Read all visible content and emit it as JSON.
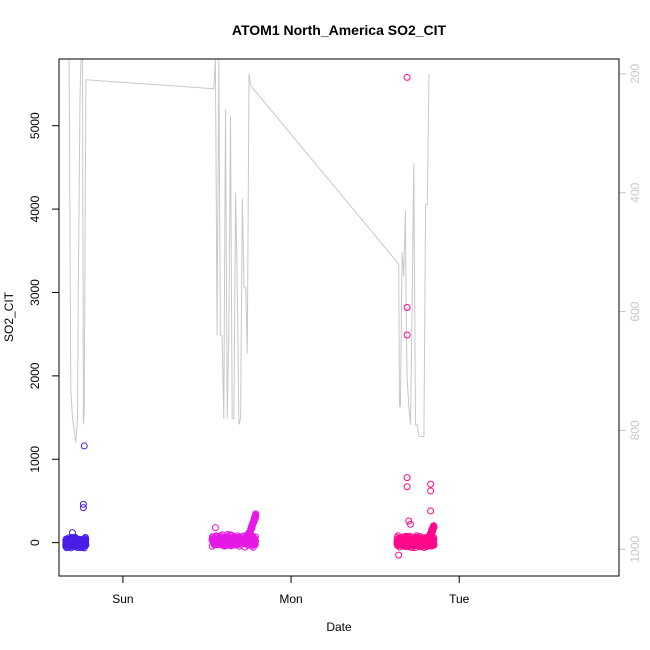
{
  "chart_data": {
    "type": "scatter",
    "title": "ATOM1 North_America SO2_CIT",
    "xlabel": "Date",
    "ylabel": "SO2_CIT",
    "x_ticks": [
      "Sun",
      "Mon",
      "Tue"
    ],
    "xlim_days": [
      -0.38,
      2.95
    ],
    "ylim": [
      -400,
      5800
    ],
    "y_ticks": [
      0,
      1000,
      2000,
      3000,
      4000,
      5000
    ],
    "y2_ticks": [
      200,
      400,
      600,
      800,
      1000
    ],
    "y2lim": [
      1045,
      175
    ],
    "y2_reversed": true,
    "grid": false,
    "legend": "none",
    "colors": {
      "axis": "#000000",
      "secondary_axis": "#c8c8c8",
      "pressure_line": "#c8c8c8",
      "series_start": "#4a1ee6",
      "series_mid": "#e619e6",
      "series_end": "#ff0a8c"
    },
    "series": [
      {
        "type": "scatter-clusters",
        "clusters": [
          {
            "start": -0.34,
            "end": -0.22,
            "base": 0,
            "spread": 55,
            "n": 260,
            "color": "#4a1ee6"
          },
          {
            "start": 0.53,
            "end": 0.79,
            "base": 20,
            "spread": 60,
            "n": 340,
            "color": "#e619e6"
          },
          {
            "start": 1.63,
            "end": 1.85,
            "base": 10,
            "spread": 60,
            "n": 320,
            "color": "#ff0a8c"
          }
        ],
        "ramps": [
          {
            "start": 0.74,
            "end": 0.79,
            "base": 40,
            "peak": 330,
            "color": "#e619e6"
          },
          {
            "start": 1.82,
            "end": 1.85,
            "base": 50,
            "peak": 200,
            "color": "#ff0a8c"
          }
        ],
        "outliers": [
          {
            "x": -0.23,
            "y": 1160,
            "color": "#4a1ee6"
          },
          {
            "x": -0.235,
            "y": 460,
            "color": "#4a1ee6"
          },
          {
            "x": -0.235,
            "y": 420,
            "color": "#4a1ee6"
          },
          {
            "x": -0.3,
            "y": 120,
            "color": "#4a1ee6"
          },
          {
            "x": 0.55,
            "y": 180,
            "color": "#e619e6"
          },
          {
            "x": 1.69,
            "y": 5580,
            "color": "#ff0a8c"
          },
          {
            "x": 1.69,
            "y": 2820,
            "color": "#ff0a8c"
          },
          {
            "x": 1.69,
            "y": 2490,
            "color": "#ff0a8c"
          },
          {
            "x": 1.69,
            "y": 780,
            "color": "#ff0a8c"
          },
          {
            "x": 1.69,
            "y": 670,
            "color": "#ff0a8c"
          },
          {
            "x": 1.83,
            "y": 700,
            "color": "#ff0a8c"
          },
          {
            "x": 1.83,
            "y": 620,
            "color": "#ff0a8c"
          },
          {
            "x": 1.83,
            "y": 380,
            "color": "#ff0a8c"
          },
          {
            "x": 1.7,
            "y": 260,
            "color": "#ff0a8c"
          },
          {
            "x": 1.71,
            "y": 220,
            "color": "#ff0a8c"
          },
          {
            "x": 1.64,
            "y": -150,
            "color": "#ff0a8c"
          },
          {
            "x": 1.72,
            "y": -60,
            "color": "#ff0a8c"
          }
        ]
      },
      {
        "type": "line",
        "axis": "right",
        "x": [
          -0.34,
          -0.32,
          -0.31,
          -0.3,
          -0.28,
          -0.27,
          -0.265,
          -0.26,
          -0.255,
          -0.25,
          -0.245,
          -0.24,
          -0.235,
          -0.23,
          -0.22,
          0.54,
          0.55,
          0.56,
          0.57,
          0.58,
          0.59,
          0.6,
          0.61,
          0.62,
          0.63,
          0.64,
          0.65,
          0.66,
          0.67,
          0.68,
          0.69,
          0.7,
          0.71,
          0.72,
          0.73,
          0.74,
          0.75,
          0.76,
          1.64,
          1.645,
          1.65,
          1.66,
          1.67,
          1.68,
          1.685,
          1.69,
          1.7,
          1.71,
          1.72,
          1.73,
          1.74,
          1.75,
          1.76,
          1.77,
          1.78,
          1.79,
          1.8,
          1.81,
          1.82
        ],
        "y": [
          175,
          175,
          730,
          780,
          820,
          780,
          560,
          390,
          240,
          180,
          175,
          175,
          790,
          770,
          210,
          225,
          175,
          640,
          175,
          640,
          640,
          780,
          260,
          780,
          640,
          270,
          780,
          780,
          400,
          560,
          790,
          780,
          410,
          560,
          560,
          670,
          200,
          220,
          520,
          760,
          760,
          500,
          540,
          430,
          620,
          710,
          760,
          790,
          580,
          350,
          790,
          790,
          810,
          810,
          810,
          810,
          420,
          420,
          200
        ]
      }
    ]
  }
}
